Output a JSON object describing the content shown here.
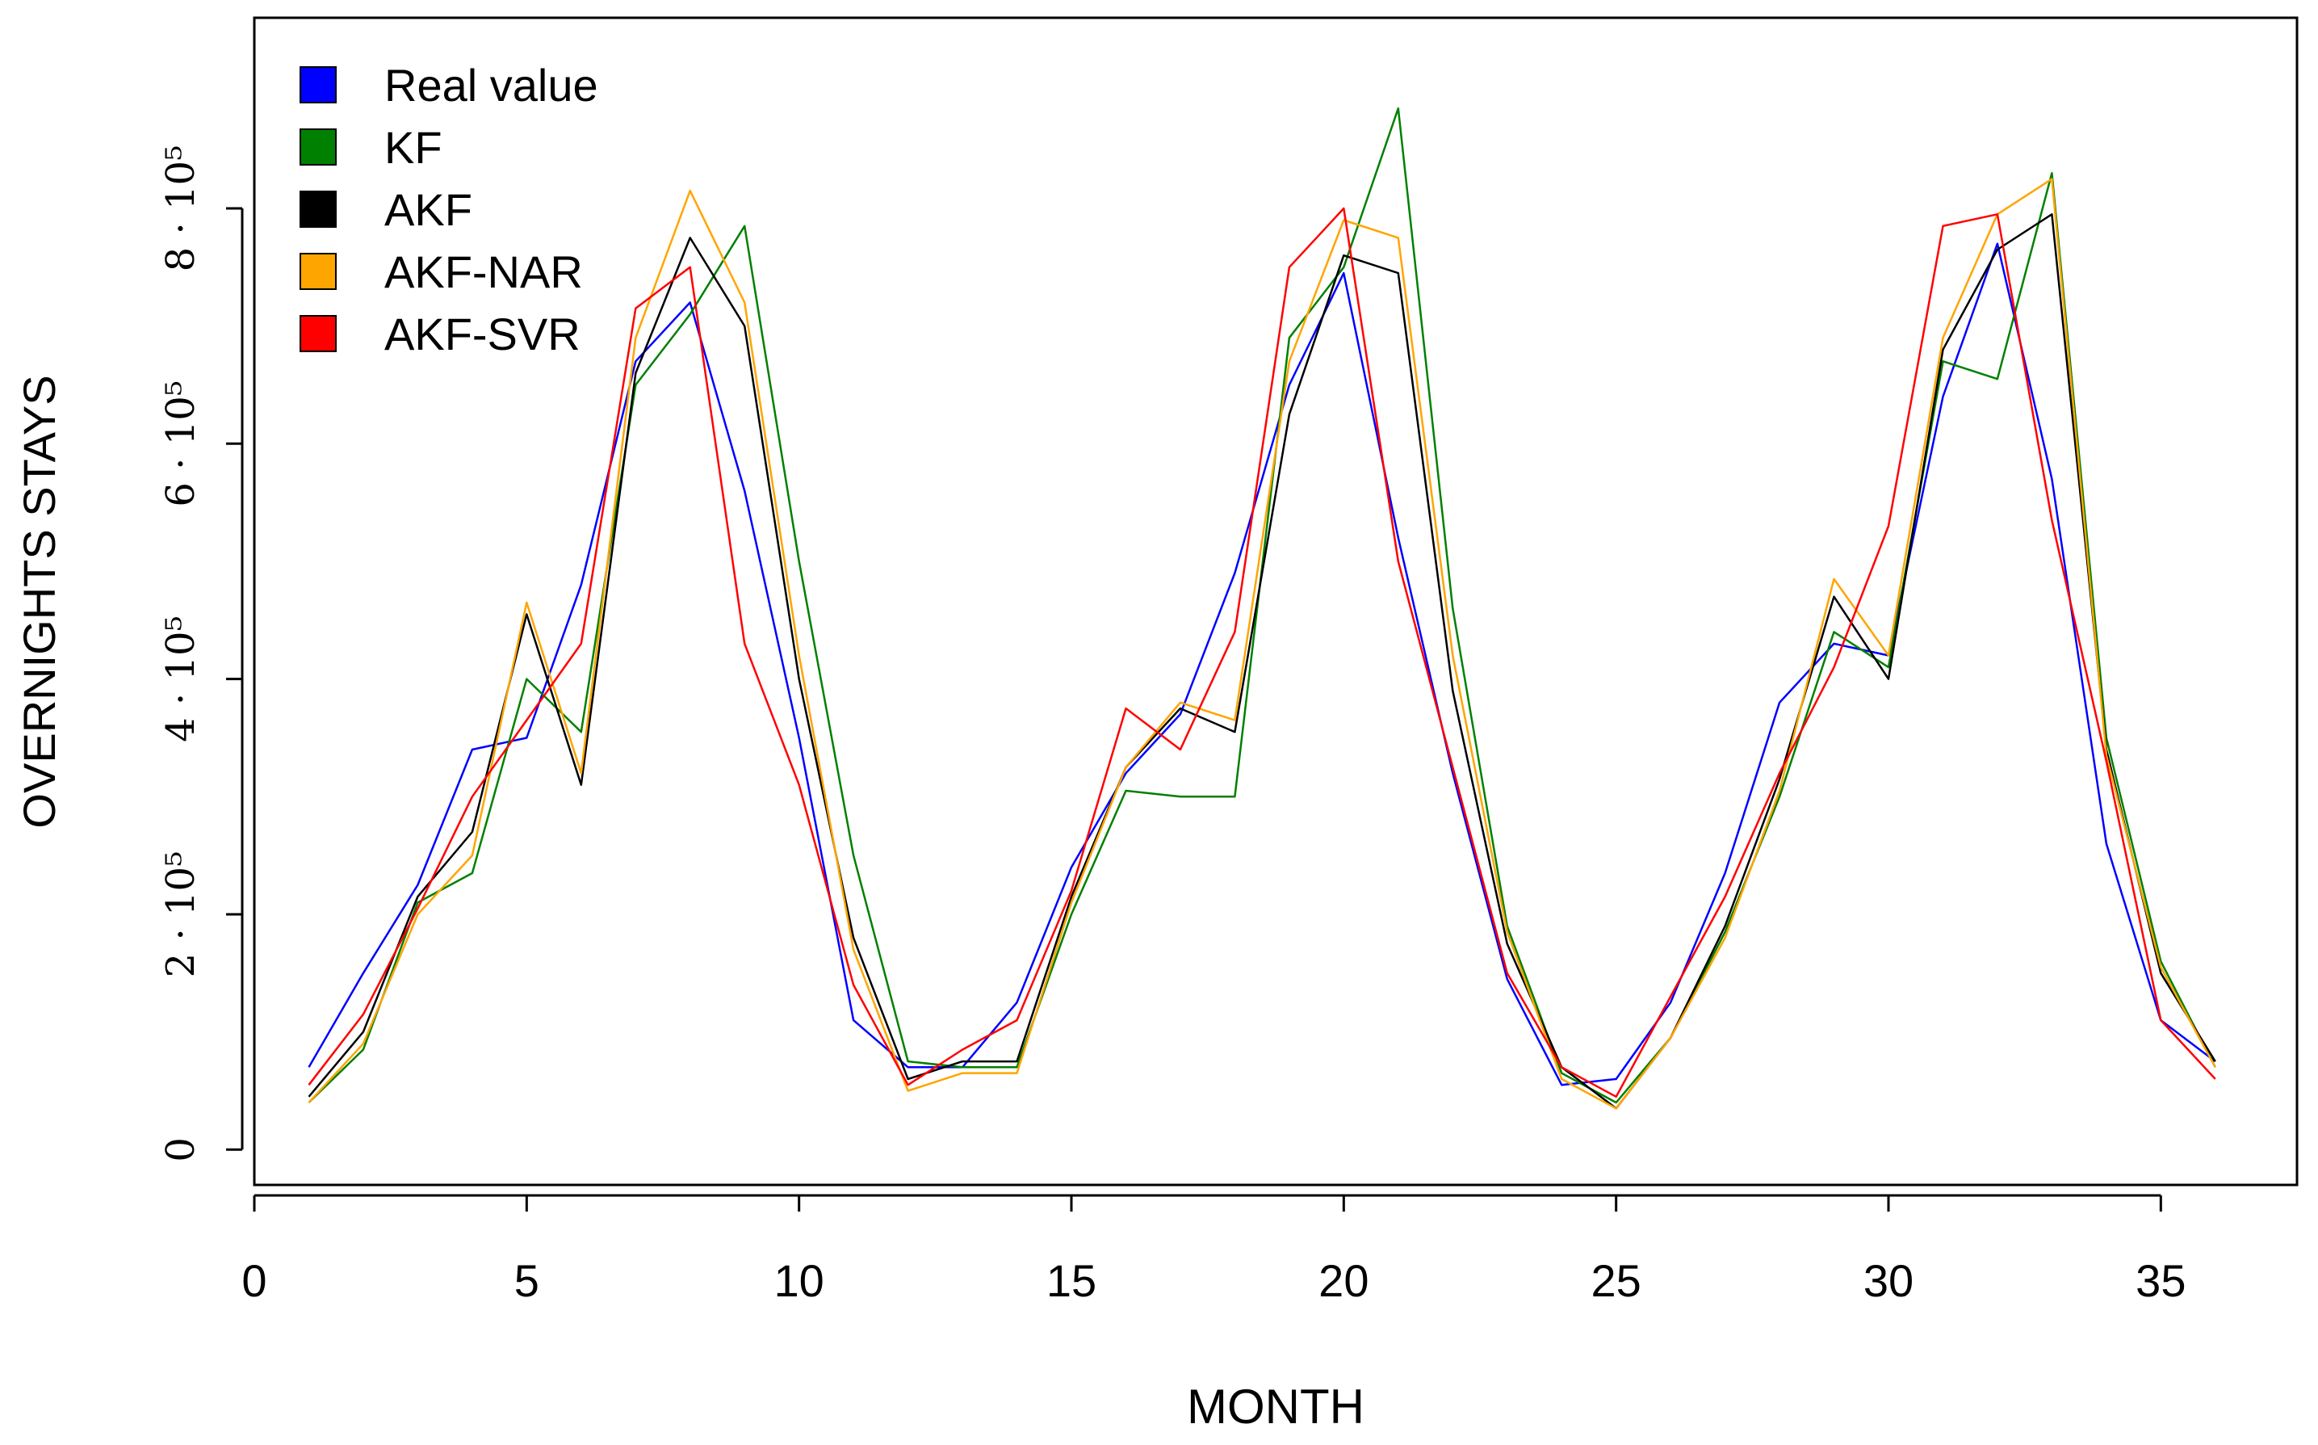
{
  "chart_data": {
    "type": "line",
    "title": "",
    "xlabel": "MONTH",
    "ylabel": "OVERNIGHTS STAYS",
    "xlim": [
      0,
      37.5
    ],
    "ylim": [
      -30000,
      962000
    ],
    "x_ticks": [
      0,
      5,
      10,
      15,
      20,
      25,
      30,
      35
    ],
    "x_tick_labels": [
      "0",
      "5",
      "10",
      "15",
      "20",
      "25",
      "30",
      "35"
    ],
    "y_ticks": [
      0,
      200000,
      400000,
      600000,
      800000
    ],
    "y_tick_labels": [
      "0",
      "2 · 10⁵",
      "4 · 10⁵",
      "6 · 10⁵",
      "8 · 10⁵"
    ],
    "legend_position": "top-left",
    "x": [
      1,
      2,
      3,
      4,
      5,
      6,
      7,
      8,
      9,
      10,
      11,
      12,
      13,
      14,
      15,
      16,
      17,
      18,
      19,
      20,
      21,
      22,
      23,
      24,
      25,
      26,
      27,
      28,
      29,
      30,
      31,
      32,
      33,
      34,
      35,
      36
    ],
    "series": [
      {
        "name": "Real value",
        "color": "#0000ff",
        "values": [
          70000,
          150000,
          225000,
          340000,
          350000,
          480000,
          670000,
          720000,
          560000,
          350000,
          110000,
          70000,
          70000,
          125000,
          240000,
          320000,
          370000,
          490000,
          650000,
          745000,
          520000,
          320000,
          145000,
          55000,
          60000,
          125000,
          235000,
          380000,
          430000,
          420000,
          640000,
          770000,
          570000,
          260000,
          110000,
          75000
        ]
      },
      {
        "name": "KF",
        "color": "#008000",
        "values": [
          40000,
          85000,
          210000,
          235000,
          400000,
          355000,
          650000,
          710000,
          785000,
          500000,
          250000,
          75000,
          70000,
          70000,
          200000,
          305000,
          300000,
          300000,
          690000,
          750000,
          885000,
          460000,
          190000,
          65000,
          40000,
          95000,
          185000,
          300000,
          440000,
          410000,
          670000,
          655000,
          830000,
          350000,
          160000,
          70000
        ]
      },
      {
        "name": "AKF",
        "color": "#000000",
        "values": [
          45000,
          100000,
          215000,
          270000,
          455000,
          310000,
          660000,
          775000,
          700000,
          400000,
          180000,
          60000,
          75000,
          75000,
          215000,
          325000,
          375000,
          355000,
          625000,
          760000,
          745000,
          390000,
          175000,
          70000,
          35000,
          95000,
          190000,
          315000,
          470000,
          400000,
          680000,
          765000,
          795000,
          340000,
          150000,
          75000
        ]
      },
      {
        "name": "AKF-NAR",
        "color": "#ffa500",
        "values": [
          40000,
          90000,
          200000,
          250000,
          465000,
          320000,
          690000,
          815000,
          720000,
          420000,
          170000,
          50000,
          65000,
          65000,
          210000,
          325000,
          380000,
          365000,
          670000,
          790000,
          775000,
          420000,
          185000,
          60000,
          35000,
          95000,
          180000,
          305000,
          485000,
          420000,
          690000,
          795000,
          825000,
          335000,
          155000,
          70000
        ]
      },
      {
        "name": "AKF-SVR",
        "color": "#ff0000",
        "values": [
          55000,
          115000,
          205000,
          300000,
          365000,
          430000,
          715000,
          750000,
          430000,
          310000,
          140000,
          55000,
          85000,
          110000,
          220000,
          375000,
          340000,
          440000,
          750000,
          800000,
          500000,
          325000,
          150000,
          70000,
          45000,
          130000,
          215000,
          320000,
          410000,
          530000,
          785000,
          795000,
          535000,
          330000,
          110000,
          60000
        ]
      }
    ]
  }
}
